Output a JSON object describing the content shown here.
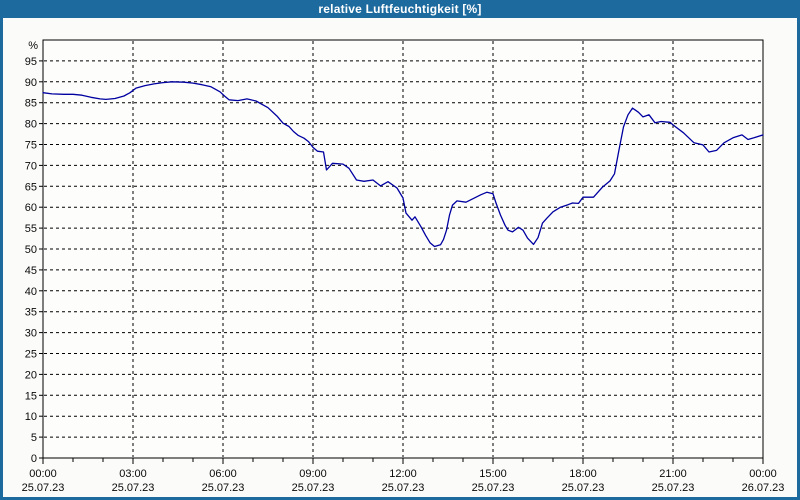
{
  "window": {
    "title": "relative Luftfeuchtigkeit [%]",
    "titlebar_bg": "#1d6a9e",
    "titlebar_text_color": "#ffffff",
    "border_color": "#1d6a9e",
    "background": "#fbfbfa"
  },
  "chart_data": {
    "type": "line",
    "title": "relative Luftfeuchtigkeit [%]",
    "ylabel": "%",
    "ylim": [
      0,
      100
    ],
    "ytick_start": 0,
    "ytick_end": 95,
    "ytick_step": 5,
    "xlim_hours": [
      0,
      24
    ],
    "major_tick_interval_hours": 3,
    "minor_tick_interval_hours": 1,
    "grid": "dashed",
    "grid_color": "#000000",
    "axis_color": "#000000",
    "tick_label_color": "#0a0a0a",
    "plot_bg": "#fdfdfc",
    "legend_position": "none",
    "xticks": [
      {
        "time": "00:00",
        "date": "25.07.23",
        "hour": 0
      },
      {
        "time": "03:00",
        "date": "25.07.23",
        "hour": 3
      },
      {
        "time": "06:00",
        "date": "25.07.23",
        "hour": 6
      },
      {
        "time": "09:00",
        "date": "25.07.23",
        "hour": 9
      },
      {
        "time": "12:00",
        "date": "25.07.23",
        "hour": 12
      },
      {
        "time": "15:00",
        "date": "25.07.23",
        "hour": 15
      },
      {
        "time": "18:00",
        "date": "25.07.23",
        "hour": 18
      },
      {
        "time": "21:00",
        "date": "25.07.23",
        "hour": 21
      },
      {
        "time": "00:00",
        "date": "26.07.23",
        "hour": 24
      }
    ],
    "series": [
      {
        "name": "relative Luftfeuchtigkeit",
        "color": "#0000a0",
        "points": [
          [
            0,
            87.4
          ],
          [
            0.3,
            87.1
          ],
          [
            0.7,
            87.0
          ],
          [
            1,
            87.0
          ],
          [
            1.3,
            86.8
          ],
          [
            1.6,
            86.3
          ],
          [
            1.9,
            85.9
          ],
          [
            2.1,
            85.8
          ],
          [
            2.4,
            86.0
          ],
          [
            2.7,
            86.6
          ],
          [
            2.9,
            87.4
          ],
          [
            3.1,
            88.5
          ],
          [
            3.4,
            89.1
          ],
          [
            3.7,
            89.5
          ],
          [
            4,
            89.8
          ],
          [
            4.3,
            90.0
          ],
          [
            4.7,
            89.9
          ],
          [
            5,
            89.7
          ],
          [
            5.3,
            89.3
          ],
          [
            5.6,
            88.8
          ],
          [
            5.9,
            87.6
          ],
          [
            6.05,
            86.6
          ],
          [
            6.2,
            85.7
          ],
          [
            6.5,
            85.5
          ],
          [
            6.8,
            85.9
          ],
          [
            7.1,
            85.4
          ],
          [
            7.5,
            83.8
          ],
          [
            7.8,
            81.8
          ],
          [
            8,
            80.1
          ],
          [
            8.2,
            79.3
          ],
          [
            8.35,
            78.1
          ],
          [
            8.5,
            77.2
          ],
          [
            8.7,
            76.5
          ],
          [
            8.85,
            75.7
          ],
          [
            9,
            74.3
          ],
          [
            9.15,
            73.4
          ],
          [
            9.35,
            73.2
          ],
          [
            9.45,
            68.9
          ],
          [
            9.65,
            70.5
          ],
          [
            10,
            70.3
          ],
          [
            10.2,
            69.3
          ],
          [
            10.45,
            66.5
          ],
          [
            10.7,
            66.2
          ],
          [
            11,
            66.5
          ],
          [
            11.25,
            65.1
          ],
          [
            11.5,
            66.1
          ],
          [
            11.8,
            64.6
          ],
          [
            12,
            62.2
          ],
          [
            12.1,
            58.6
          ],
          [
            12.3,
            56.9
          ],
          [
            12.4,
            57.7
          ],
          [
            12.6,
            55.3
          ],
          [
            12.75,
            53.3
          ],
          [
            12.9,
            51.5
          ],
          [
            13.05,
            50.6
          ],
          [
            13.25,
            51.0
          ],
          [
            13.35,
            52.3
          ],
          [
            13.45,
            54.5
          ],
          [
            13.55,
            58.1
          ],
          [
            13.65,
            60.5
          ],
          [
            13.8,
            61.5
          ],
          [
            14.1,
            61.2
          ],
          [
            14.35,
            62.1
          ],
          [
            14.6,
            63.0
          ],
          [
            14.8,
            63.6
          ],
          [
            15,
            63.2
          ],
          [
            15.1,
            61.0
          ],
          [
            15.25,
            58.1
          ],
          [
            15.4,
            55.7
          ],
          [
            15.5,
            54.5
          ],
          [
            15.65,
            54.1
          ],
          [
            15.85,
            55.2
          ],
          [
            16,
            54.5
          ],
          [
            16.15,
            52.6
          ],
          [
            16.35,
            51.1
          ],
          [
            16.5,
            52.7
          ],
          [
            16.65,
            56.2
          ],
          [
            16.8,
            57.4
          ],
          [
            17,
            58.9
          ],
          [
            17.25,
            60.0
          ],
          [
            17.5,
            60.6
          ],
          [
            17.65,
            61.0
          ],
          [
            17.85,
            60.9
          ],
          [
            18,
            62.4
          ],
          [
            18.35,
            62.4
          ],
          [
            18.65,
            64.8
          ],
          [
            18.9,
            66.3
          ],
          [
            19.05,
            68.0
          ],
          [
            19.2,
            73.7
          ],
          [
            19.35,
            79.2
          ],
          [
            19.5,
            82.1
          ],
          [
            19.65,
            83.7
          ],
          [
            19.85,
            82.7
          ],
          [
            20,
            81.6
          ],
          [
            20.2,
            82.1
          ],
          [
            20.4,
            80.2
          ],
          [
            20.6,
            80.5
          ],
          [
            20.9,
            80.3
          ],
          [
            21,
            79.7
          ],
          [
            21.35,
            77.8
          ],
          [
            21.7,
            75.4
          ],
          [
            22,
            74.9
          ],
          [
            22.2,
            73.2
          ],
          [
            22.45,
            73.6
          ],
          [
            22.7,
            75.4
          ],
          [
            23,
            76.6
          ],
          [
            23.3,
            77.3
          ],
          [
            23.5,
            76.2
          ],
          [
            23.7,
            76.6
          ],
          [
            24,
            77.3
          ]
        ]
      }
    ]
  }
}
